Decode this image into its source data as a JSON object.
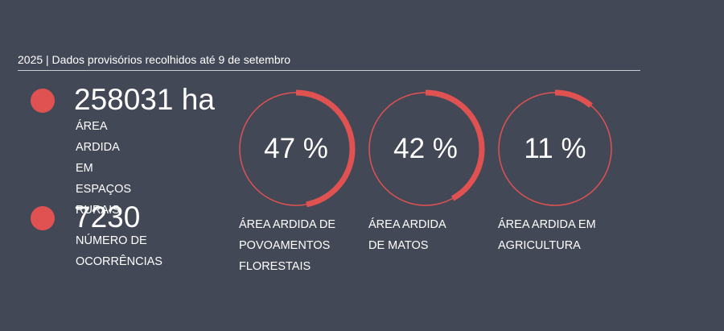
{
  "header": {
    "title": "2025 | Dados provisórios recolhidos até 9 de setembro"
  },
  "colors": {
    "accent": "#e05252",
    "background": "#434856",
    "text": "#ffffff"
  },
  "stats": [
    {
      "value": "258031 ha",
      "label": "ÁREA ARDIDA EM\nESPAÇOS RURAIS"
    },
    {
      "value": "7230",
      "label": "NÚMERO DE\nOCORRÊNCIAS"
    }
  ],
  "rings": [
    {
      "value": 47,
      "display": "47 %",
      "label": "ÁREA ARDIDA DE\nPOVOAMENTOS\nFLORESTAIS"
    },
    {
      "value": 42,
      "display": "42 %",
      "label": "ÁREA ARDIDA\nDE MATOS"
    },
    {
      "value": 11,
      "display": "11 %",
      "label": "ÁREA ARDIDA EM\nAGRICULTURA"
    }
  ]
}
